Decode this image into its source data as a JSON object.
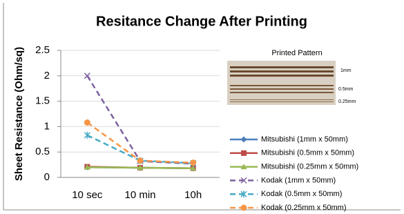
{
  "chart_data": {
    "type": "line",
    "title": "Resitance Change After Printing",
    "y_label": "Sheet Resistance (Ohm/sq)",
    "categories": [
      "10 sec",
      "10 min",
      "10h"
    ],
    "ylim": [
      0,
      2.5
    ],
    "yticks": [
      0,
      0.5,
      1,
      1.5,
      2,
      2.5
    ],
    "grid": true,
    "series": [
      {
        "name": "Mitsubishi (1mm x 50mm)",
        "color": "#4a7ebb",
        "marker": "diamond",
        "linestyle": "solid",
        "values": [
          0.2,
          0.19,
          0.18
        ]
      },
      {
        "name": "Mitsubishi (0.5mm x 50mm)",
        "color": "#be4b48",
        "marker": "square",
        "linestyle": "solid",
        "values": [
          0.21,
          0.19,
          0.18
        ]
      },
      {
        "name": "Mitsubishi (0.25mm x 50mm)",
        "color": "#98b954",
        "marker": "triangle",
        "linestyle": "solid",
        "values": [
          0.2,
          0.19,
          0.18
        ]
      },
      {
        "name": "Kodak (1mm x 50mm)",
        "color": "#7d60a0",
        "marker": "x",
        "linestyle": "dashed",
        "values": [
          2.0,
          0.32,
          0.27
        ]
      },
      {
        "name": "Kodak (0.5mm x 50mm)",
        "color": "#46aac5",
        "marker": "star",
        "linestyle": "dashed",
        "values": [
          0.83,
          0.33,
          0.28
        ]
      },
      {
        "name": "Kodak (0.25mm x 50mm)",
        "color": "#f79646",
        "marker": "circle",
        "linestyle": "dashed",
        "values": [
          1.08,
          0.33,
          0.29
        ]
      }
    ]
  },
  "inset": {
    "title": "Printed Pattern",
    "labels": [
      "1mm",
      "0.5mm",
      "0.25mm"
    ]
  }
}
